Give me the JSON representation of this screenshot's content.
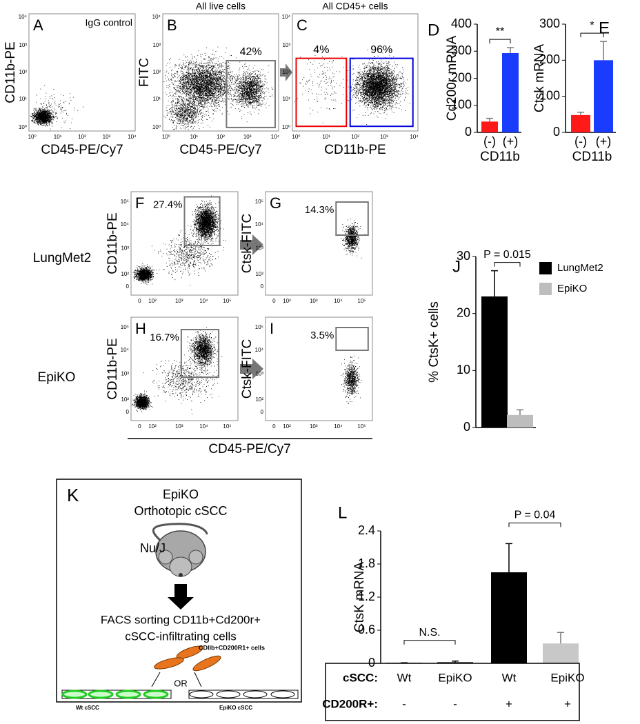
{
  "flow_ticks_log4": [
    "10⁰",
    "10¹",
    "10²",
    "10³",
    "10⁴"
  ],
  "flow_ticks_log5": [
    "0",
    "10²",
    "10³",
    "10⁴",
    "10⁵"
  ],
  "flow_panels": [
    {
      "letter": "A",
      "header": "IgG control",
      "x_label": "CD45-PE/Cy7",
      "y_label": "CD11b-PE"
    },
    {
      "letter": "B",
      "header": "All live cells",
      "x_label": "CD45-PE/Cy7",
      "y_label": "FITC",
      "gates": [
        "42%"
      ]
    },
    {
      "letter": "C",
      "header": "All CD45+ cells",
      "x_label": "CD11b-PE",
      "gates": [
        "4%",
        "96%"
      ]
    },
    {
      "letter": "F",
      "y_label": "CD11b-PE",
      "gates": [
        "27.4%"
      ]
    },
    {
      "letter": "G",
      "y_label": "Ctsk-FITC",
      "gates": [
        "14.3%"
      ]
    },
    {
      "letter": "H",
      "y_label": "CD11b-PE",
      "gates": [
        "16.7%"
      ]
    },
    {
      "letter": "I",
      "y_label": "Ctsk-FITC",
      "gates": [
        "3.5%"
      ]
    }
  ],
  "flow_shared_x_label": "CD45-PE/Cy7",
  "row_labels": [
    "LungMet2",
    "EpiKO"
  ],
  "chart_data": [
    {
      "type": "bar",
      "panel": "D",
      "y_label": "Cd200r mRNA",
      "x_label": "CD11b",
      "categories": [
        "(-)",
        "(+)"
      ],
      "values": [
        40,
        293
      ],
      "errors": [
        12,
        20
      ],
      "colors": [
        "#ff1a1a",
        "#1a3cff"
      ],
      "ylim": [
        0,
        400
      ],
      "yticks": [
        0,
        100,
        200,
        300,
        400
      ],
      "annotations": [
        "**"
      ]
    },
    {
      "type": "bar",
      "panel": "E",
      "y_label": "Ctsk mRNA",
      "x_label": "CD11b",
      "categories": [
        "(-)",
        "(+)"
      ],
      "values": [
        48,
        200
      ],
      "errors": [
        8,
        52
      ],
      "colors": [
        "#ff1a1a",
        "#1a3cff"
      ],
      "ylim": [
        0,
        300
      ],
      "yticks": [
        0,
        100,
        200,
        300
      ],
      "annotations": [
        "*"
      ]
    },
    {
      "type": "bar",
      "panel": "J",
      "y_label": "% CtsK+ cells",
      "categories": [
        "LungMet2",
        "EpiKO"
      ],
      "legend": "right",
      "values": [
        23,
        2.2
      ],
      "errors": [
        4.5,
        0.9
      ],
      "colors": [
        "#000000",
        "#bdbdbd"
      ],
      "ylim": [
        0,
        30
      ],
      "yticks": [
        0,
        10,
        20,
        30
      ],
      "annotations": [
        "P = 0.015"
      ]
    },
    {
      "type": "bar",
      "panel": "L",
      "y_label": "CtsK mRNA",
      "values": [
        0.01,
        0.02,
        1.65,
        0.36
      ],
      "errors": [
        0,
        0.02,
        0.52,
        0.2
      ],
      "colors": [
        "#000000",
        "#000000",
        "#000000",
        "#c8c8c8"
      ],
      "ylim": [
        0,
        2.4
      ],
      "yticks": [
        0,
        0.6,
        1.2,
        1.8,
        2.4
      ],
      "annotations": [
        "N.S.",
        "P = 0.04"
      ],
      "table": {
        "row_labels": [
          "cSCC:",
          "CD200R+:"
        ],
        "rows": [
          [
            "Wt",
            "EpiKO",
            "Wt",
            "EpiKO"
          ],
          [
            "-",
            "-",
            "+",
            "+"
          ]
        ]
      }
    }
  ],
  "schematic": {
    "letter": "K",
    "line1": "EpiKO",
    "line2": "Orthotopic cSCC",
    "mouse": "Nu/J",
    "step1": "FACS sorting CD11b+Cd200r+",
    "step2": "cSCC-infiltrating cells",
    "cells": "CDllb+CD200R1+ cells",
    "or": "OR",
    "dish_left": "Wt cSCC",
    "dish_right": "EpiKO cSCC"
  }
}
